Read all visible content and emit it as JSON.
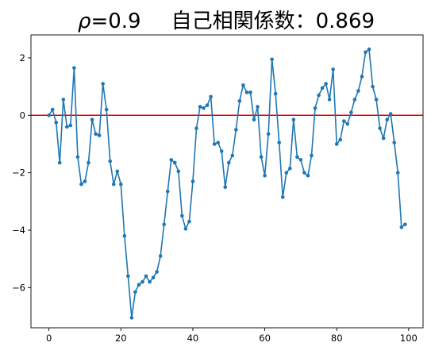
{
  "chart_data": {
    "type": "line",
    "title": "ρ=0.9　　自己相関係数：0.869",
    "title_parts": {
      "rho_symbol": "ρ",
      "rho_value": "=0.9",
      "label": "自己相関係数：0.869"
    },
    "xlabel": "",
    "ylabel": "",
    "xlim": [
      -5,
      104
    ],
    "ylim": [
      -7.4,
      2.8
    ],
    "xticks": [
      0,
      20,
      40,
      60,
      80,
      100
    ],
    "xtick_labels": [
      "0",
      "20",
      "40",
      "60",
      "80",
      "100"
    ],
    "yticks": [
      2,
      0,
      -2,
      -4,
      -6
    ],
    "ytick_labels": [
      "2",
      "0",
      "−2",
      "−4",
      "−6"
    ],
    "grid": false,
    "reference_line": {
      "y": 0,
      "color": "#e00000"
    },
    "series": [
      {
        "color": "#1f77b4",
        "marker": "circle",
        "x": [
          0,
          1,
          2,
          3,
          4,
          5,
          6,
          7,
          8,
          9,
          10,
          11,
          12,
          13,
          14,
          15,
          16,
          17,
          18,
          19,
          20,
          21,
          22,
          23,
          24,
          25,
          26,
          27,
          28,
          29,
          30,
          31,
          32,
          33,
          34,
          35,
          36,
          37,
          38,
          39,
          40,
          41,
          42,
          43,
          44,
          45,
          46,
          47,
          48,
          49,
          50,
          51,
          52,
          53,
          54,
          55,
          56,
          57,
          58,
          59,
          60,
          61,
          62,
          63,
          64,
          65,
          66,
          67,
          68,
          69,
          70,
          71,
          72,
          73,
          74,
          75,
          76,
          77,
          78,
          79,
          80,
          81,
          82,
          83,
          84,
          85,
          86,
          87,
          88,
          89,
          90,
          91,
          92,
          93,
          94,
          95,
          96,
          97,
          98,
          99
        ],
        "values": [
          0.0,
          0.2,
          -0.25,
          -1.65,
          0.55,
          -0.4,
          -0.35,
          1.65,
          -1.45,
          -2.4,
          -2.3,
          -1.65,
          -0.15,
          -0.65,
          -0.7,
          1.1,
          0.2,
          -1.6,
          -2.4,
          -1.95,
          -2.4,
          -4.2,
          -5.6,
          -7.05,
          -6.15,
          -5.9,
          -5.8,
          -5.6,
          -5.8,
          -5.65,
          -5.45,
          -4.9,
          -3.8,
          -2.65,
          -1.55,
          -1.65,
          -1.95,
          -3.5,
          -3.95,
          -3.7,
          -2.3,
          -0.45,
          0.3,
          0.25,
          0.35,
          0.65,
          -1.0,
          -0.95,
          -1.25,
          -2.5,
          -1.65,
          -1.4,
          -0.5,
          0.5,
          1.05,
          0.8,
          0.8,
          -0.15,
          0.3,
          -1.45,
          -2.1,
          -0.65,
          1.95,
          0.75,
          -0.95,
          -2.85,
          -2.0,
          -1.85,
          -0.15,
          -1.45,
          -1.55,
          -2.0,
          -2.1,
          -1.4,
          0.25,
          0.7,
          0.95,
          1.1,
          0.55,
          1.6,
          -1.0,
          -0.85,
          -0.2,
          -0.3,
          0.1,
          0.55,
          0.85,
          1.35,
          2.2,
          2.3,
          1.0,
          0.55,
          -0.45,
          -0.8,
          -0.15,
          0.05,
          -0.95,
          -2.0,
          -3.9,
          -3.8
        ]
      }
    ]
  }
}
